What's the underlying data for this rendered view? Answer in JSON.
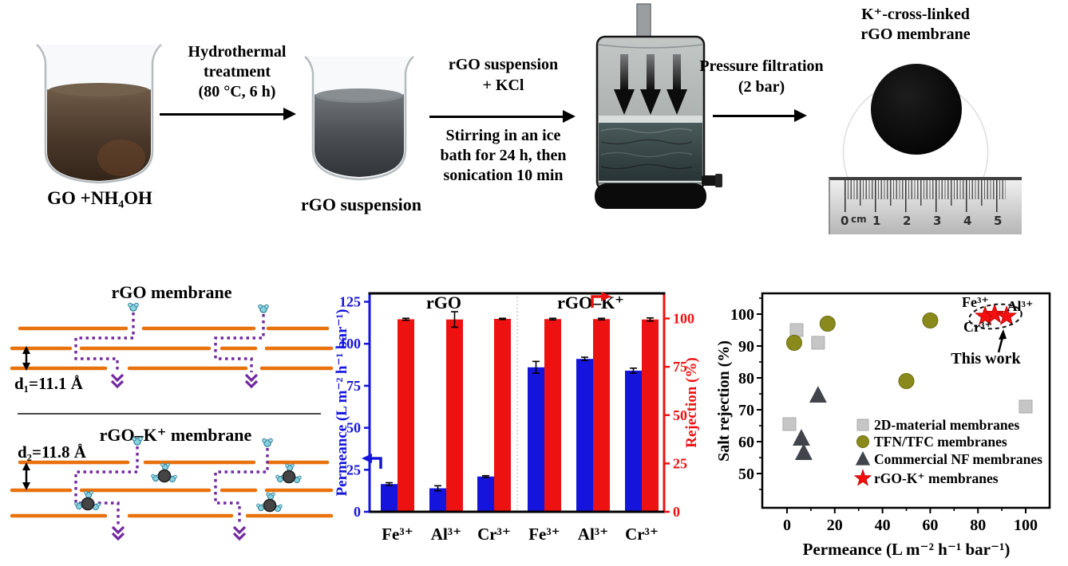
{
  "process": {
    "beaker1_label": "GO +NH₄OH",
    "step1_text": "Hydrothermal\ntreatment\n(80 °C, 6 h)",
    "beaker2_label": "rGO suspension",
    "step2_text_top": "rGO suspension\n+  KCl",
    "step2_text_bottom": "Stirring in an ice\nbath for 24 h, then\nsonication 10 min",
    "step3_text": "Pressure filtration\n(2 bar)",
    "result_title": "K⁺-cross-linked\nrGO membrane",
    "ruler": {
      "unit": "cm",
      "numbers": [
        "0",
        "1",
        "2",
        "3",
        "4",
        "5"
      ]
    }
  },
  "schematic": {
    "top_title": "rGO membrane",
    "top_spacing_label": "d₁=11.1 Å",
    "bottom_title": "rGO–K⁺ membrane",
    "bottom_spacing_label": "d₂=11.8 Å",
    "sheet_color": "#e8720e",
    "path_color": "#7228a0"
  },
  "chart_data": [
    {
      "type": "bar",
      "group_labels": [
        "rGO",
        "rGO–K⁺"
      ],
      "categories": [
        "Fe³⁺",
        "Al³⁺",
        "Cr³⁺",
        "Fe³⁺",
        "Al³⁺",
        "Cr³⁺"
      ],
      "series": [
        {
          "name": "Permeance",
          "axis": "left",
          "color": "#1414dd",
          "values": [
            16.5,
            14,
            21,
            86,
            91,
            84
          ],
          "errors": [
            0.8,
            1.5,
            0.5,
            3.5,
            1,
            1.5
          ]
        },
        {
          "name": "Rejection",
          "axis": "right",
          "color": "#ee1111",
          "values": [
            99.6,
            99.5,
            99.8,
            99.7,
            99.7,
            99.5
          ],
          "errors": [
            0.5,
            4,
            0.3,
            0.4,
            0.4,
            0.8
          ]
        }
      ],
      "ylabel_left": "Permeance (L m⁻² h⁻¹ bar⁻¹)",
      "ylabel_right": "Rejection (%)",
      "yticks_left": [
        0,
        25,
        50,
        75,
        100,
        125
      ],
      "yticks_right": [
        0,
        25,
        50,
        75,
        100
      ],
      "ylim_left": [
        0,
        130
      ],
      "ylim_right": [
        0,
        113
      ],
      "grid": false
    },
    {
      "type": "scatter",
      "xlabel": "Permeance (L m⁻² h⁻¹ bar⁻¹)",
      "ylabel": "Salt rejection (%)",
      "xticks": [
        0,
        20,
        40,
        60,
        80,
        100
      ],
      "yticks": [
        50,
        60,
        70,
        80,
        90,
        100
      ],
      "xlim": [
        -10,
        110
      ],
      "ylim": [
        43,
        106
      ],
      "grid": false,
      "legend_position": "inside-bottom-right",
      "series": [
        {
          "name": "2D-material membranes",
          "marker": "square",
          "color": "#c6c6c6",
          "stroke": "#ababab",
          "points": [
            [
              1,
              65.5
            ],
            [
              4,
              95
            ],
            [
              13,
              91
            ],
            [
              100,
              71
            ]
          ]
        },
        {
          "name": "TFN/TFC membranes",
          "marker": "circle",
          "color": "#8a8a1c",
          "stroke": "#6d6d10",
          "points": [
            [
              3,
              91
            ],
            [
              17,
              97
            ],
            [
              50,
              79
            ],
            [
              60,
              98
            ]
          ]
        },
        {
          "name": "Commercial NF membranes",
          "marker": "triangle",
          "color": "#41454b",
          "stroke": "none",
          "points": [
            [
              6,
              61
            ],
            [
              7,
              56.5
            ],
            [
              13,
              74.5
            ]
          ]
        },
        {
          "name": "rGO-K⁺ membranes",
          "marker": "star",
          "color": "#f50f0f",
          "stroke": "#c00606",
          "points": [
            [
              83,
              99.3
            ],
            [
              87,
              99.9
            ],
            [
              92,
              99.3
            ]
          ]
        }
      ],
      "annotations": {
        "fe": "Fe³⁺",
        "al": "Al³⁺",
        "cr": "Cr³⁺",
        "this_work": "This work"
      }
    }
  ],
  "colors": {
    "permeance_blue": "#1414dd",
    "rejection_red": "#ee1111",
    "sheet_orange": "#e8720e",
    "path_purple": "#7228a0"
  }
}
